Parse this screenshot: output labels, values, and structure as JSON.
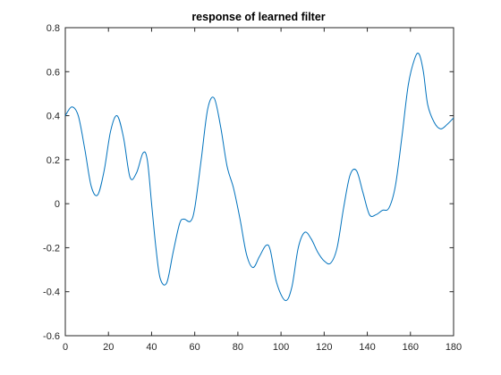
{
  "chart_data": {
    "type": "line",
    "title": "response of learned filter",
    "xlabel": "",
    "ylabel": "",
    "xlim": [
      0,
      180
    ],
    "ylim": [
      -0.6,
      0.8
    ],
    "x_ticks": [
      0,
      20,
      40,
      60,
      80,
      100,
      120,
      140,
      160,
      180
    ],
    "y_ticks": [
      -0.6,
      -0.4,
      -0.2,
      0,
      0.2,
      0.4,
      0.6,
      0.8
    ],
    "x_tick_labels": [
      "0",
      "20",
      "40",
      "60",
      "80",
      "100",
      "120",
      "140",
      "160",
      "180"
    ],
    "y_tick_labels": [
      "-0.6",
      "-0.4",
      "-0.2",
      "0",
      "0.2",
      "0.4",
      "0.6",
      "0.8"
    ],
    "grid": false,
    "series": [
      {
        "color": "#0072BD",
        "x": [
          0,
          3,
          6,
          9,
          12,
          15,
          18,
          21,
          24,
          27,
          30,
          33,
          36,
          38,
          40,
          42,
          44,
          47,
          50,
          53,
          55,
          58,
          60,
          63,
          66,
          69,
          72,
          75,
          78,
          81,
          84,
          87,
          90,
          93,
          95,
          98,
          102,
          105,
          108,
          111,
          114,
          117,
          120,
          123,
          126,
          129,
          132,
          135,
          138,
          141,
          144,
          147,
          150,
          153,
          156,
          159,
          162,
          164,
          166,
          168,
          171,
          174,
          177,
          180
        ],
        "y": [
          0.4,
          0.44,
          0.4,
          0.25,
          0.08,
          0.04,
          0.15,
          0.33,
          0.4,
          0.3,
          0.12,
          0.14,
          0.23,
          0.2,
          0.0,
          -0.2,
          -0.34,
          -0.36,
          -0.22,
          -0.09,
          -0.07,
          -0.08,
          -0.02,
          0.2,
          0.43,
          0.48,
          0.35,
          0.17,
          0.07,
          -0.07,
          -0.23,
          -0.29,
          -0.24,
          -0.19,
          -0.21,
          -0.36,
          -0.44,
          -0.38,
          -0.2,
          -0.13,
          -0.16,
          -0.22,
          -0.26,
          -0.27,
          -0.2,
          -0.02,
          0.13,
          0.15,
          0.05,
          -0.05,
          -0.05,
          -0.03,
          -0.02,
          0.08,
          0.3,
          0.54,
          0.66,
          0.68,
          0.6,
          0.45,
          0.37,
          0.34,
          0.36,
          0.39
        ]
      }
    ]
  }
}
